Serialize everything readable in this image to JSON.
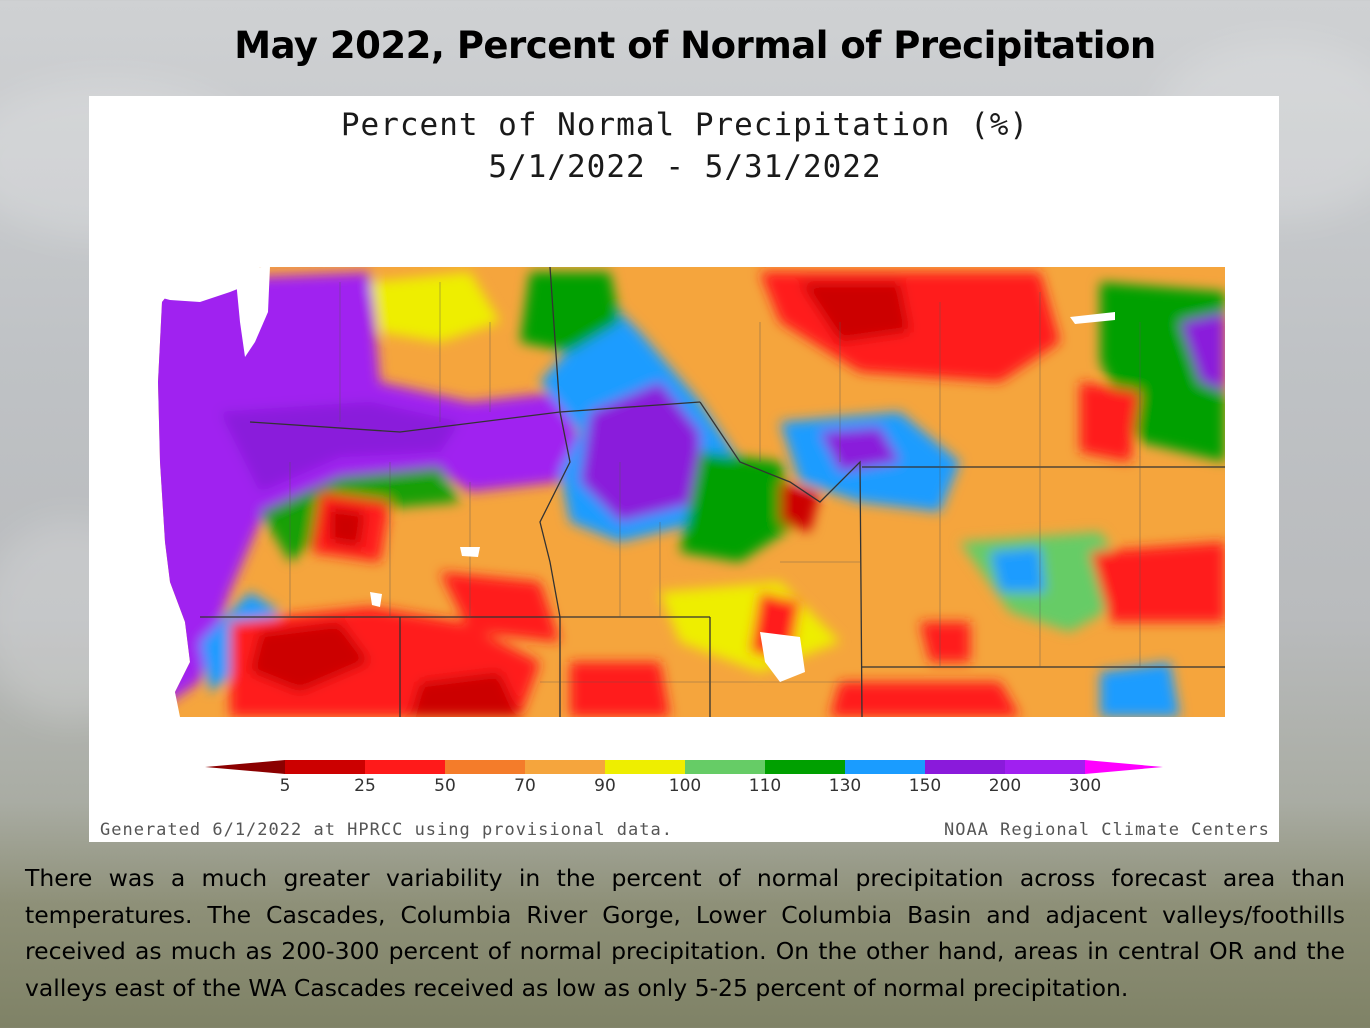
{
  "slide": {
    "title": "May 2022, Percent of Normal of Precipitation",
    "description": "There was a much greater variability in the percent of normal precipitation across forecast area than temperatures. The Cascades, Columbia River Gorge, Lower Columbia Basin and adjacent valleys/foothills received as much as 200-300 percent of normal precipitation. On the other hand, areas in central OR and the valleys east of the WA Cascades received as low as only 5-25 percent of normal precipitation."
  },
  "map": {
    "title_line1": "Percent of Normal Precipitation (%)",
    "title_line2": "5/1/2022 - 5/31/2022",
    "footer_left": "Generated 6/1/2022 at HPRCC using provisional data.",
    "footer_right": "NOAA Regional Climate Centers",
    "legend": {
      "ticks": [
        "5",
        "25",
        "50",
        "70",
        "90",
        "100",
        "110",
        "130",
        "150",
        "200",
        "300"
      ],
      "colors": [
        "#8b0000",
        "#cc0000",
        "#ff1a1a",
        "#f47c2a",
        "#f5a53d",
        "#eeee00",
        "#66cc66",
        "#00a000",
        "#1a9cff",
        "#8a1adb",
        "#a020f0",
        "#ff00ff"
      ]
    }
  }
}
